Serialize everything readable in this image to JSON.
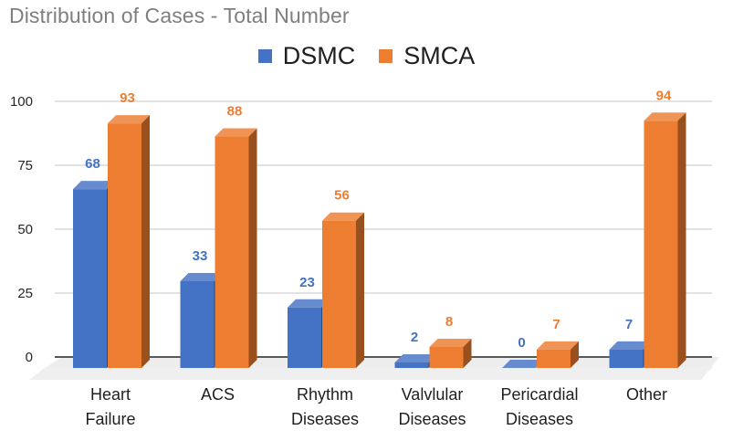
{
  "chart_data": {
    "type": "bar",
    "title": "Distribution of Cases - Total Number",
    "xlabel": "",
    "ylabel": "",
    "ylim": [
      0,
      100
    ],
    "yticks": [
      "0",
      "25",
      "50",
      "75",
      "100"
    ],
    "ytick_values": [
      0,
      25,
      50,
      75,
      100
    ],
    "grid": true,
    "legend_position": "top",
    "categories": [
      [
        "Heart",
        "Failure"
      ],
      [
        "ACS"
      ],
      [
        "Rhythm",
        "Diseases"
      ],
      [
        "Valvlular",
        "Diseases"
      ],
      [
        "Pericardial",
        "Diseases"
      ],
      [
        "Other"
      ]
    ],
    "series": [
      {
        "name": "DSMC",
        "color": "#4472c4",
        "values": [
          68,
          33,
          23,
          2,
          0,
          7
        ],
        "labels": [
          "68",
          "33",
          "23",
          "2",
          "0",
          "7"
        ]
      },
      {
        "name": "SMCA",
        "color": "#ed7d31",
        "values": [
          93,
          88,
          56,
          8,
          7,
          94
        ],
        "labels": [
          "93",
          "88",
          "56",
          "8",
          "7",
          "94"
        ]
      }
    ]
  }
}
